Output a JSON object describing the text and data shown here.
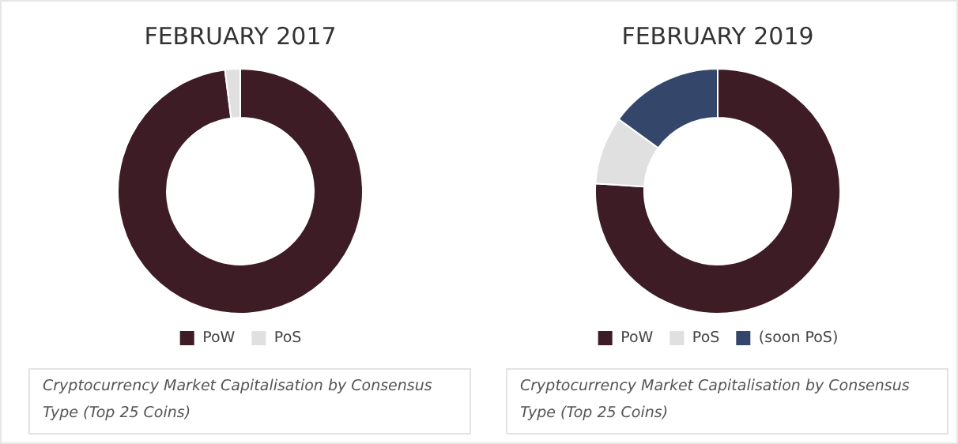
{
  "chart_data": [
    {
      "type": "donut",
      "title": "FEBRUARY 2017",
      "categories": [
        "PoW",
        "PoS"
      ],
      "values": [
        98,
        2
      ],
      "colors": [
        "#3d1c26",
        "#e0e0e0"
      ],
      "legend": "bottom",
      "annotations": [
        "Cryptocurrency Market Capitalisation by Consensus Type (Top 25 Coins)"
      ]
    },
    {
      "type": "donut",
      "title": "FEBRUARY 2019",
      "categories": [
        "PoW",
        "PoS",
        "(soon PoS)"
      ],
      "values": [
        76,
        9,
        15
      ],
      "colors": [
        "#3d1c26",
        "#e0e0e0",
        "#34476a"
      ],
      "legend": "bottom",
      "annotations": [
        "Cryptocurrency Market Capitalisation by Consensus Type (Top 25 Coins)"
      ]
    }
  ]
}
